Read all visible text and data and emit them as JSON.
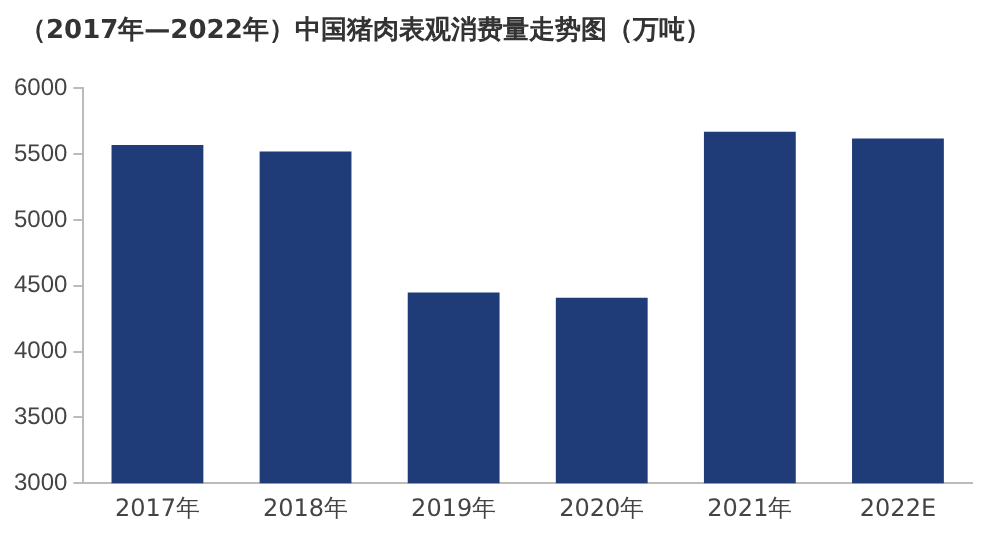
{
  "chart_data": {
    "type": "bar",
    "title": "（2017年—2022年）中国猪肉表观消费量走势图（万吨）",
    "categories": [
      "2017年",
      "2018年",
      "2019年",
      "2020年",
      "2021年",
      "2022E"
    ],
    "values": [
      5570,
      5520,
      4450,
      4410,
      5670,
      5620
    ],
    "color": "#1f3b78",
    "ylim": [
      3000,
      6000
    ],
    "yticks": [
      3000,
      3500,
      4000,
      4500,
      5000,
      5500,
      6000
    ],
    "grid": false
  }
}
